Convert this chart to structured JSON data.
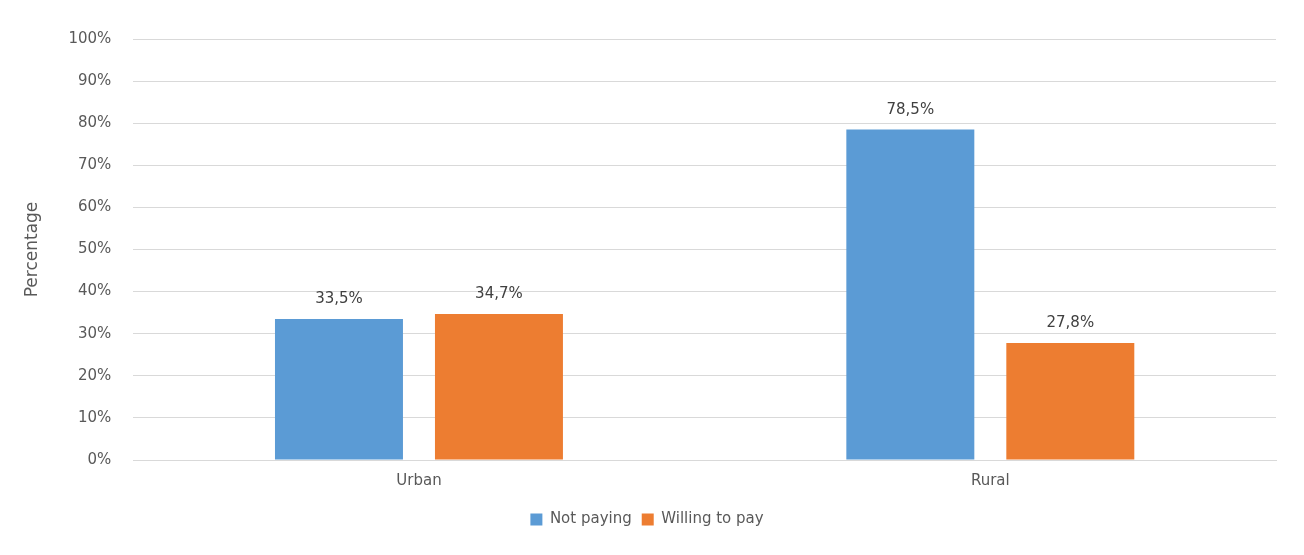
{
  "chart_data": {
    "type": "bar",
    "ylabel": "Percentage",
    "categories": [
      "Urban",
      "Rural"
    ],
    "series": [
      {
        "name": "Not paying",
        "color": "#5b9bd5",
        "values": [
          33.5,
          78.5
        ],
        "value_labels": [
          "33,5%",
          "78,5%"
        ]
      },
      {
        "name": "Willing to pay",
        "color": "#ed7d31",
        "values": [
          34.7,
          27.8
        ],
        "value_labels": [
          "34,7%",
          "27,8%"
        ]
      }
    ],
    "ylim": [
      0,
      100
    ],
    "yticks": [
      {
        "value": 0,
        "label": "0%"
      },
      {
        "value": 10,
        "label": "10%"
      },
      {
        "value": 20,
        "label": "20%"
      },
      {
        "value": 30,
        "label": "30%"
      },
      {
        "value": 40,
        "label": "40%"
      },
      {
        "value": 50,
        "label": "50%"
      },
      {
        "value": 60,
        "label": "60%"
      },
      {
        "value": 70,
        "label": "70%"
      },
      {
        "value": 80,
        "label": "80%"
      },
      {
        "value": 90,
        "label": "90%"
      },
      {
        "value": 100,
        "label": "100%"
      }
    ],
    "grid": "y",
    "legend": "bottom"
  }
}
